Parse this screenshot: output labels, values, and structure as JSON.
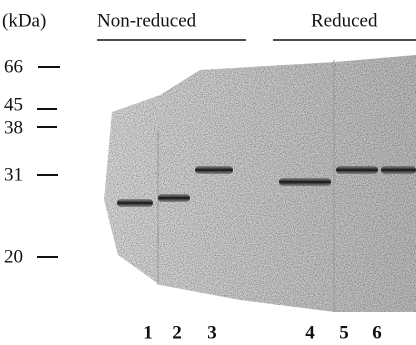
{
  "header": {
    "unit": "(kDa)",
    "groups": [
      "Non-reduced",
      "Reduced"
    ]
  },
  "markers": [
    "66",
    "45",
    "38",
    "31",
    "20"
  ],
  "lanes": [
    "1",
    "2",
    "3",
    "4",
    "5",
    "6"
  ]
}
